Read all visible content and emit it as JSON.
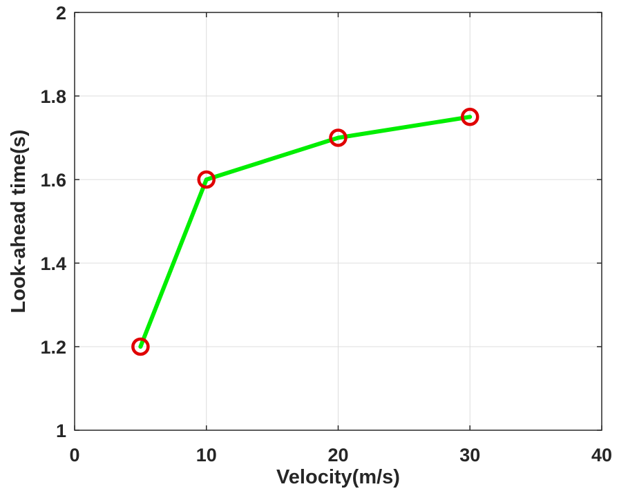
{
  "chart_data": {
    "type": "line",
    "title": "",
    "xlabel": "Velocity(m/s)",
    "ylabel": "Look-ahead time(s)",
    "xlim": [
      0,
      40
    ],
    "ylim": [
      1,
      2
    ],
    "xticks": [
      0,
      10,
      20,
      30,
      40
    ],
    "yticks": [
      1,
      1.2,
      1.4,
      1.6,
      1.8,
      2
    ],
    "xtick_labels": [
      "0",
      "10",
      "20",
      "30",
      "40"
    ],
    "ytick_labels": [
      "1",
      "1.2",
      "1.4",
      "1.6",
      "1.8",
      "2"
    ],
    "grid": true,
    "series": [
      {
        "x": [
          5,
          10,
          20,
          30
        ],
        "values": [
          1.2,
          1.6,
          1.7,
          1.75
        ],
        "line_color": "#00ee00",
        "marker": "circle",
        "marker_color": "#e00000"
      }
    ]
  }
}
